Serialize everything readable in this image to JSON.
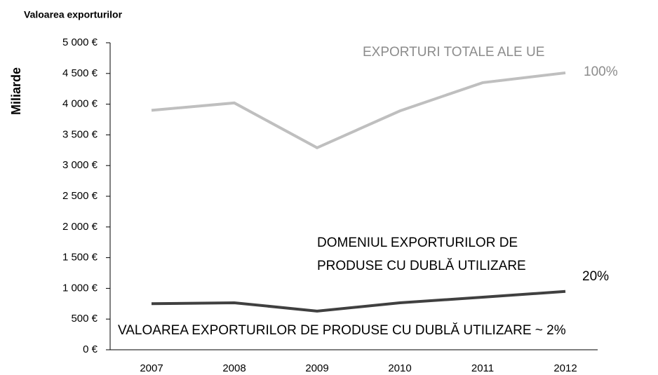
{
  "chart_data": {
    "type": "line",
    "title": "Valoarea exporturilor",
    "y_label": "Miliarde",
    "categories": [
      "2007",
      "2008",
      "2009",
      "2010",
      "2011",
      "2012"
    ],
    "series": [
      {
        "color": "#bfbfbf",
        "values": [
          3900,
          4020,
          3290,
          3890,
          4350,
          4510
        ]
      },
      {
        "color": "#404040",
        "values": [
          750,
          765,
          630,
          765,
          856,
          950
        ]
      }
    ],
    "ylim": [
      0,
      5000
    ],
    "yticks": [
      {
        "value": 0,
        "label": "0 €"
      },
      {
        "value": 500,
        "label": "500 €"
      },
      {
        "value": 1000,
        "label": "1 000 €"
      },
      {
        "value": 1500,
        "label": "1 500 €"
      },
      {
        "value": 2000,
        "label": "2 000 €"
      },
      {
        "value": 2500,
        "label": "2 500 €"
      },
      {
        "value": 3000,
        "label": "3 000 €"
      },
      {
        "value": 3500,
        "label": "3 500 €"
      },
      {
        "value": 4000,
        "label": "4 000 €"
      },
      {
        "value": 4500,
        "label": "4 500 €"
      },
      {
        "value": 5000,
        "label": "5 000 €"
      }
    ],
    "annotations": [
      "EXPORTURI TOTALE ALE UE",
      "100%",
      "DOMENIUL EXPORTURILOR DE",
      "PRODUSE CU DUBLĂ UTILIZARE",
      "20%",
      "VALOAREA EXPORTURILOR DE PRODUSE CU DUBLĂ UTILIZARE ~ 2%"
    ]
  }
}
